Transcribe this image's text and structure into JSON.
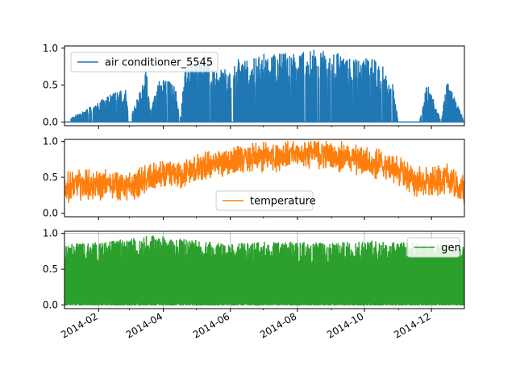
{
  "chart_data": [
    {
      "type": "line",
      "title": "",
      "xlabel": "",
      "ylabel": "",
      "xlim": [
        "2014-01-01",
        "2014-12-31"
      ],
      "ylim": [
        -0.05,
        1.03
      ],
      "yticks": [
        "0.0",
        "0.5",
        "1.0"
      ],
      "grid": false,
      "legend": "upper-left",
      "series": [
        {
          "name": "air conditioner_5545",
          "color": "#1f77b4",
          "baseline": 0.0,
          "envelope": {
            "dates": [
              "2014-01-01",
              "2014-02-26",
              "2014-03-01",
              "2014-03-17",
              "2014-03-20",
              "2014-03-29",
              "2014-04-05",
              "2014-04-12",
              "2014-04-16",
              "2014-04-20",
              "2014-04-25",
              "2014-05-01",
              "2014-05-05",
              "2014-05-12",
              "2014-05-20",
              "2014-05-25",
              "2014-06-01",
              "2014-06-10",
              "2014-06-20",
              "2014-07-01",
              "2014-07-10",
              "2014-07-20",
              "2014-08-01",
              "2014-08-10",
              "2014-08-15",
              "2014-08-20",
              "2014-08-30",
              "2014-09-05",
              "2014-09-12",
              "2014-09-20",
              "2014-10-01",
              "2014-10-10",
              "2014-10-20",
              "2014-10-26",
              "2014-11-01",
              "2014-11-10",
              "2014-11-20",
              "2014-11-27",
              "2014-12-10",
              "2014-12-15",
              "2014-12-31"
            ],
            "values": [
              0.0,
              0.5,
              0.0,
              0.73,
              0.15,
              0.6,
              0.59,
              0.47,
              0.0,
              0.8,
              0.78,
              0.76,
              0.93,
              0.95,
              0.66,
              0.75,
              0.68,
              0.9,
              0.87,
              0.93,
              0.92,
              0.96,
              0.96,
              0.94,
              0.97,
              0.98,
              0.93,
              0.96,
              0.86,
              0.9,
              0.88,
              0.85,
              0.72,
              0.6,
              0.0,
              0.0,
              0.0,
              0.55,
              0.0,
              0.6,
              0.0
            ]
          }
        }
      ]
    },
    {
      "type": "line",
      "title": "",
      "xlabel": "",
      "ylabel": "",
      "xlim": [
        "2014-01-01",
        "2014-12-31"
      ],
      "ylim": [
        -0.05,
        1.03
      ],
      "yticks": [
        "0.0",
        "0.5",
        "1.0"
      ],
      "grid": false,
      "legend": "lower-center",
      "series": [
        {
          "name": "temperature",
          "color": "#ff7f0e",
          "trend": {
            "dates": [
              "2014-01-01",
              "2014-01-15",
              "2014-02-01",
              "2014-02-15",
              "2014-03-01",
              "2014-03-15",
              "2014-04-01",
              "2014-04-15",
              "2014-05-01",
              "2014-05-15",
              "2014-06-01",
              "2014-06-15",
              "2014-07-01",
              "2014-07-15",
              "2014-08-01",
              "2014-08-15",
              "2014-09-01",
              "2014-09-15",
              "2014-10-01",
              "2014-10-15",
              "2014-11-01",
              "2014-11-15",
              "2014-12-01",
              "2014-12-15",
              "2014-12-31"
            ],
            "values": [
              0.35,
              0.4,
              0.38,
              0.42,
              0.35,
              0.45,
              0.52,
              0.55,
              0.6,
              0.68,
              0.72,
              0.75,
              0.78,
              0.8,
              0.82,
              0.85,
              0.8,
              0.78,
              0.72,
              0.68,
              0.6,
              0.45,
              0.42,
              0.48,
              0.3
            ]
          },
          "range": [
            0.0,
            1.0
          ]
        }
      ]
    },
    {
      "type": "line",
      "title": "",
      "xlabel": "",
      "ylabel": "",
      "xlim": [
        "2014-01-01",
        "2014-12-31"
      ],
      "ylim": [
        -0.05,
        1.03
      ],
      "yticks": [
        "0.0",
        "0.5",
        "1.0"
      ],
      "xticks": [
        "2014-02",
        "2014-04",
        "2014-06",
        "2014-08",
        "2014-10",
        "2014-12"
      ],
      "grid": true,
      "legend": "upper-right",
      "series": [
        {
          "name": "gen",
          "color": "#2ca02c",
          "envelope": {
            "dates": [
              "2014-01-01",
              "2014-02-01",
              "2014-03-01",
              "2014-03-20",
              "2014-04-01",
              "2014-05-01",
              "2014-06-01",
              "2014-07-01",
              "2014-08-01",
              "2014-09-01",
              "2014-10-01",
              "2014-11-01",
              "2014-12-01",
              "2014-12-31"
            ],
            "values": [
              0.85,
              0.88,
              0.92,
              0.98,
              0.95,
              0.9,
              0.85,
              0.88,
              0.88,
              0.86,
              0.9,
              0.88,
              0.85,
              0.82
            ]
          },
          "range": [
            0.0,
            1.0
          ]
        }
      ]
    }
  ]
}
